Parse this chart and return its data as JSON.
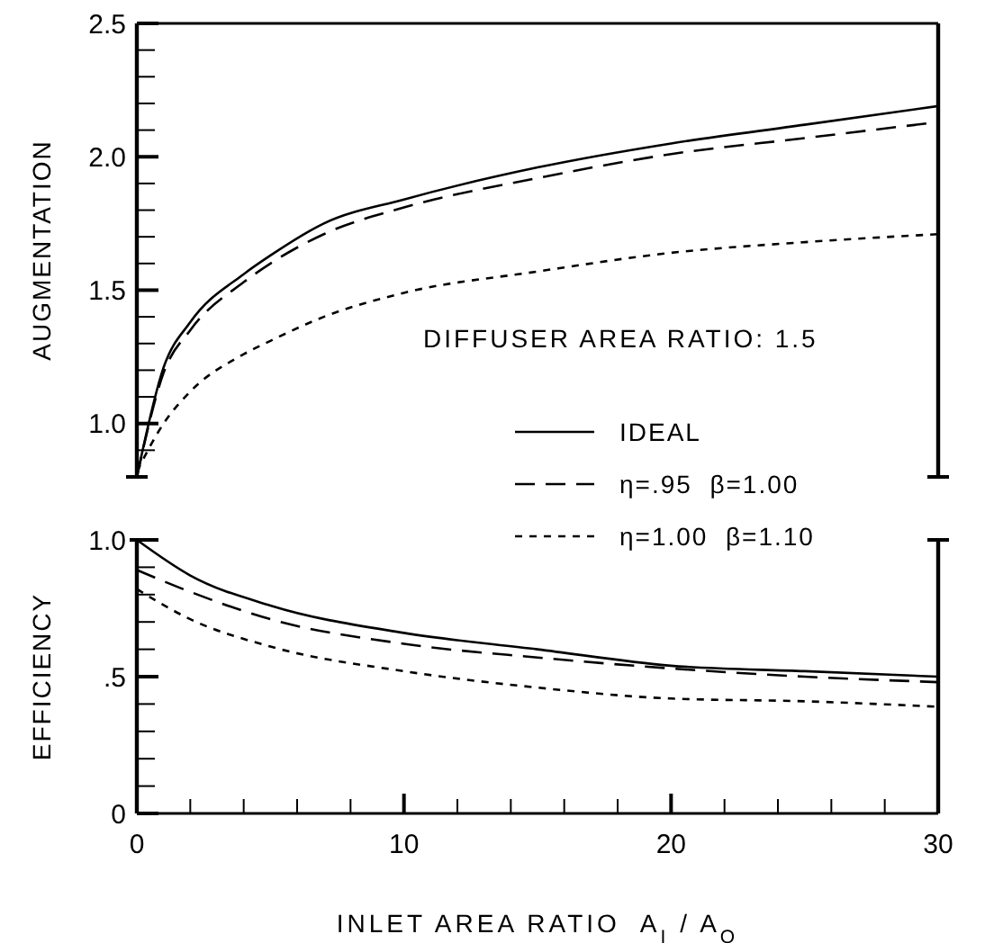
{
  "chart_data": [
    {
      "type": "line",
      "ylabel": "AUGMENTATION",
      "xlim": [
        0,
        30
      ],
      "ylim": [
        0.8,
        2.5
      ],
      "tick_labels": "y",
      "legend": "bottom right",
      "yticks": [
        {
          "value": 0.9,
          "label": null
        },
        {
          "value": 1,
          "label": "1.0"
        },
        {
          "value": 1.1,
          "label": null
        },
        {
          "value": 1.2,
          "label": null
        },
        {
          "value": 1.3,
          "label": null
        },
        {
          "value": 1.4,
          "label": null
        },
        1.5,
        {
          "value": 1.6,
          "label": null
        },
        {
          "value": 1.7,
          "label": null
        },
        {
          "value": 1.8,
          "label": null
        },
        {
          "value": 1.9,
          "label": null
        },
        {
          "value": 2,
          "label": "2.0"
        },
        {
          "value": 2.1,
          "label": null
        },
        {
          "value": 2.2,
          "label": null
        },
        {
          "value": 2.3,
          "label": null
        },
        {
          "value": 2.4,
          "label": null
        },
        2.5
      ],
      "annotations": [
        "DIFFUSER AREA RATIO: 1.5"
      ],
      "x": [
        0,
        1,
        2,
        4,
        5,
        7,
        10,
        15,
        20,
        25,
        30
      ],
      "series": [
        {
          "name": "IDEAL",
          "color": "#000000",
          "line_style": "solid",
          "values": [
            0.8,
            1.21,
            1.38,
            1.56,
            1.63,
            1.75,
            1.84,
            1.96,
            2.05,
            2.12,
            2.19
          ]
        },
        {
          "name": "η=.95  β=1.00",
          "color": "#000000",
          "line_style": "dashed",
          "values": [
            0.8,
            1.19,
            1.35,
            1.53,
            1.6,
            1.71,
            1.81,
            1.92,
            2.01,
            2.07,
            2.13
          ]
        },
        {
          "name": "η=1.00  β=1.10",
          "color": "#000000",
          "line_style": "dotted",
          "values": [
            0.82,
            1.0,
            1.12,
            1.26,
            1.31,
            1.4,
            1.49,
            1.57,
            1.64,
            1.68,
            1.71
          ]
        }
      ]
    },
    {
      "type": "line",
      "ylabel": "EFFICIENCY",
      "xlabel": "INLET AREA RATIO  A$_{I}$ / A$_{O}$",
      "xlim": [
        0,
        30
      ],
      "ylim": [
        0,
        1
      ],
      "xticks": [
        0,
        {
          "value": 2,
          "label": null
        },
        {
          "value": 4,
          "label": null
        },
        {
          "value": 6,
          "label": null
        },
        {
          "value": 8,
          "label": null
        },
        10,
        {
          "value": 12,
          "label": null
        },
        {
          "value": 14,
          "label": null
        },
        {
          "value": 16,
          "label": null
        },
        {
          "value": 18,
          "label": null
        },
        20,
        {
          "value": 22,
          "label": null
        },
        {
          "value": 24,
          "label": null
        },
        {
          "value": 26,
          "label": null
        },
        {
          "value": 28,
          "label": null
        },
        30
      ],
      "yticks": [
        0,
        {
          "value": 0.1,
          "label": null
        },
        {
          "value": 0.2,
          "label": null
        },
        {
          "value": 0.3,
          "label": null
        },
        {
          "value": 0.4,
          "label": null
        },
        {
          "value": 0.5,
          "label": ".5"
        },
        {
          "value": 0.6,
          "label": null
        },
        {
          "value": 0.7,
          "label": null
        },
        {
          "value": 0.8,
          "label": null
        },
        {
          "value": 0.9,
          "label": null
        },
        {
          "value": 1,
          "label": "1.0"
        }
      ],
      "x": [
        0,
        2,
        5,
        10,
        15,
        20,
        25,
        30
      ],
      "series": [
        {
          "color": "#000000",
          "line_style": "solid",
          "values": [
            1.0,
            0.87,
            0.76,
            0.66,
            0.6,
            0.54,
            0.52,
            0.5
          ]
        },
        {
          "color": "#000000",
          "line_style": "dashed",
          "values": [
            0.89,
            0.81,
            0.71,
            0.62,
            0.57,
            0.53,
            0.5,
            0.48
          ]
        },
        {
          "color": "#000000",
          "line_style": "dotted",
          "values": [
            0.82,
            0.71,
            0.61,
            0.52,
            0.46,
            0.42,
            0.41,
            0.39
          ]
        }
      ]
    }
  ]
}
